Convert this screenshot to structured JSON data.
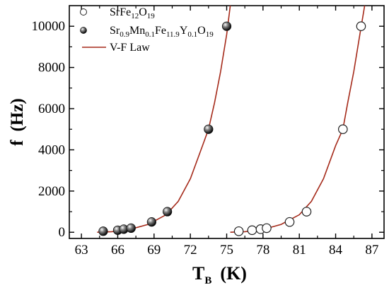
{
  "chart_data": {
    "type": "scatter",
    "xlabel": {
      "main": "T",
      "sub": "B",
      "unit": "(K)"
    },
    "ylabel": {
      "main": "f",
      "unit": "(Hz)"
    },
    "xlim": [
      62,
      88
    ],
    "ylim": [
      -300,
      11000
    ],
    "xticks": [
      "63",
      "66",
      "69",
      "72",
      "75",
      "78",
      "81",
      "84",
      "87"
    ],
    "yticks": [
      "0",
      "2000",
      "4000",
      "6000",
      "8000",
      "10000"
    ],
    "legend_position": "top-left",
    "legend": [
      {
        "marker": "open-circle",
        "parts": [
          [
            "SrFe",
            ""
          ],
          [
            "12",
            "sub"
          ],
          [
            "O",
            ""
          ],
          [
            "19",
            "sub"
          ]
        ]
      },
      {
        "marker": "filled-sphere",
        "parts": [
          [
            "Sr",
            ""
          ],
          [
            "0.9",
            "sub"
          ],
          [
            "Mn",
            ""
          ],
          [
            "0.1",
            "sub"
          ],
          [
            "Fe",
            ""
          ],
          [
            "11.9",
            "sub"
          ],
          [
            "Y",
            ""
          ],
          [
            "0.1",
            "sub"
          ],
          [
            "O",
            ""
          ],
          [
            "19",
            "sub"
          ]
        ]
      },
      {
        "marker": "line",
        "parts": [
          [
            "V-F Law",
            ""
          ]
        ]
      }
    ],
    "series": [
      {
        "marker": "filled-sphere",
        "x": [
          64.8,
          66.0,
          66.5,
          67.1,
          68.8,
          70.1,
          73.5,
          75.0
        ],
        "y": [
          50,
          100,
          150,
          200,
          500,
          1000,
          5000,
          10000
        ]
      },
      {
        "marker": "open-circle",
        "x": [
          76.0,
          77.1,
          77.8,
          78.3,
          80.2,
          81.6,
          84.6,
          86.1
        ],
        "y": [
          50,
          100,
          150,
          200,
          500,
          1000,
          5000,
          10000
        ]
      }
    ],
    "fit_lines": [
      {
        "color": "#a52a1a",
        "x_start": 64.3,
        "x_end": 75.3,
        "x": [
          64.3,
          65.5,
          67,
          68.5,
          70,
          71,
          72,
          73,
          73.5,
          74,
          74.5,
          75,
          75.3
        ],
        "y": [
          0,
          30,
          140,
          380,
          850,
          1500,
          2600,
          4200,
          5000,
          6300,
          7800,
          9600,
          11000
        ]
      },
      {
        "color": "#a52a1a",
        "x_start": 75.3,
        "x_end": 86.4,
        "x": [
          75.3,
          76.5,
          78,
          79.5,
          81,
          82,
          83,
          84,
          84.6,
          85,
          85.5,
          86,
          86.4
        ],
        "y": [
          0,
          30,
          140,
          380,
          850,
          1500,
          2600,
          4200,
          5000,
          6300,
          7800,
          9600,
          11000
        ]
      }
    ],
    "colors": {
      "fit": "#a52a1a",
      "marker_stroke": "#222222"
    }
  }
}
